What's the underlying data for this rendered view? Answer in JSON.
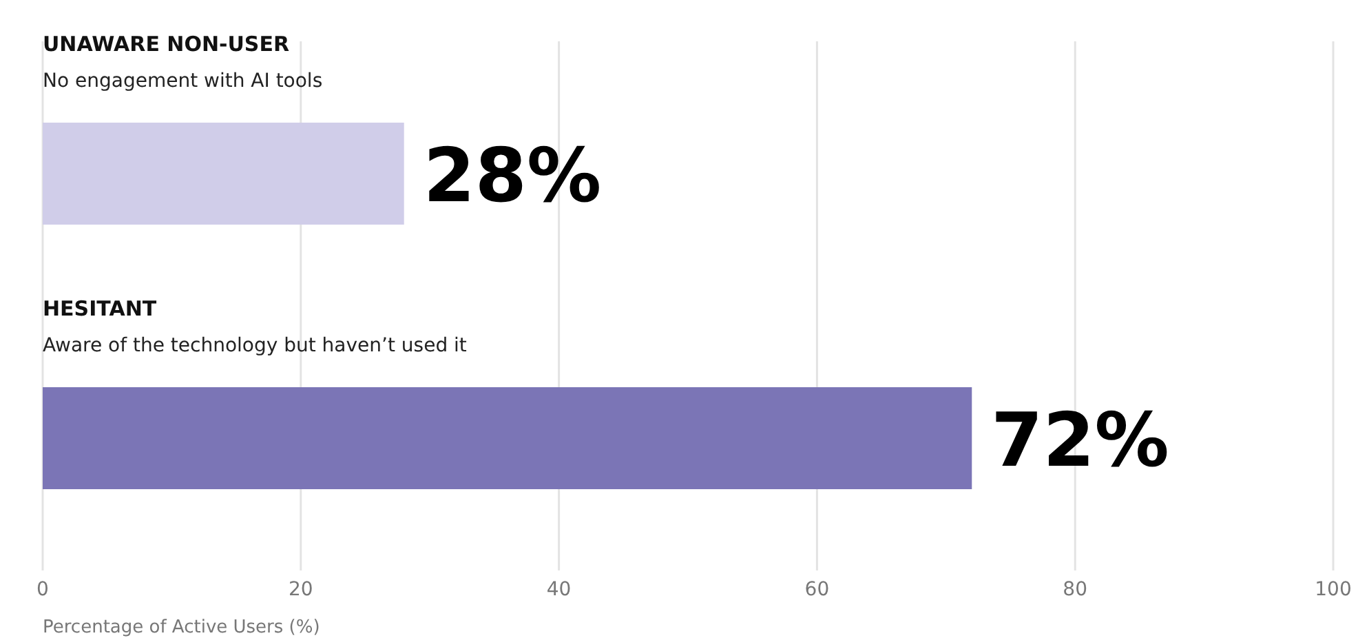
{
  "chart_data": {
    "type": "bar",
    "orientation": "horizontal",
    "categories": [
      "UNAWARE NON-USER",
      "HESITANT"
    ],
    "values": [
      28,
      72
    ],
    "colors": [
      "#d0cde9",
      "#7b75b6"
    ],
    "value_labels": [
      "28%",
      "72%"
    ],
    "annotations": [
      "No engagement with AI tools",
      "Aware of the technology but haven’t used it"
    ],
    "xlabel": "Percentage of Active Users (%)",
    "xlim": [
      0,
      100
    ],
    "xticks": [
      0,
      20,
      40,
      60,
      80,
      100
    ],
    "grid": "x"
  }
}
